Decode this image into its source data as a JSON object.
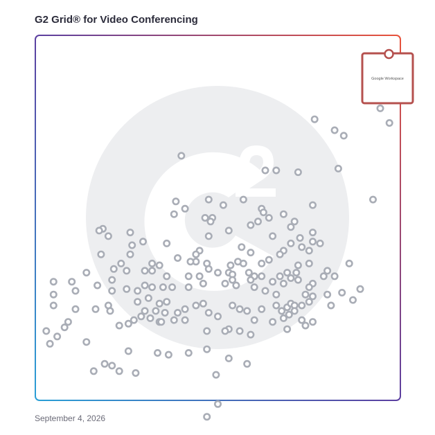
{
  "header": {
    "title": "G2 Grid® for Video Conferencing"
  },
  "footer": {
    "date": "September 4, 2026"
  },
  "colors": {
    "frame_top": "#e8523a",
    "frame_left": "#5b3fa0",
    "frame_bottom_left": "#2a9fd6",
    "frame_bottom_right": "#7a3fa0",
    "dot": "#a9adb6",
    "highlight": "#b5504e",
    "watermark": "#edeef0"
  },
  "chart_data": {
    "type": "scatter",
    "title": "G2 Grid® for Video Conferencing",
    "xlabel": "",
    "ylabel": "",
    "xlim": [
      0,
      100
    ],
    "ylim": [
      0,
      100
    ],
    "grid": "quadrants",
    "quadrant_split": [
      50,
      50
    ],
    "highlight": {
      "label": "Google Workspace",
      "x": 97,
      "y": 88,
      "icon": "google-workspace-logo"
    },
    "points": [
      [
        94.5,
        80
      ],
      [
        97,
        76
      ],
      [
        76.5,
        77
      ],
      [
        82,
        74
      ],
      [
        84.5,
        72.5
      ],
      [
        40,
        67
      ],
      [
        63,
        63
      ],
      [
        66,
        63
      ],
      [
        72,
        62.5
      ],
      [
        83,
        63.5
      ],
      [
        47.5,
        55
      ],
      [
        57,
        55
      ],
      [
        62,
        52.5
      ],
      [
        92.5,
        55
      ],
      [
        76,
        53.5
      ],
      [
        38.5,
        54.5
      ],
      [
        41,
        52.5
      ],
      [
        51.5,
        53.5
      ],
      [
        38,
        51
      ],
      [
        62.5,
        51.5
      ],
      [
        64,
        50
      ],
      [
        68,
        51
      ],
      [
        46.5,
        50
      ],
      [
        48.5,
        50
      ],
      [
        48,
        49
      ],
      [
        61,
        49
      ],
      [
        59,
        48
      ],
      [
        71,
        49
      ],
      [
        70,
        47.5
      ],
      [
        53,
        46.5
      ],
      [
        65,
        45
      ],
      [
        18.5,
        47
      ],
      [
        17.5,
        46.5
      ],
      [
        20,
        45
      ],
      [
        26,
        46
      ],
      [
        29.5,
        43.5
      ],
      [
        36,
        43
      ],
      [
        26.5,
        42.5
      ],
      [
        47.5,
        45
      ],
      [
        70,
        43
      ],
      [
        76,
        46
      ],
      [
        72.5,
        44.5
      ],
      [
        76,
        43.5
      ],
      [
        73,
        42
      ],
      [
        78,
        43
      ],
      [
        56.5,
        42
      ],
      [
        59,
        40.5
      ],
      [
        68,
        41
      ],
      [
        67,
        40
      ],
      [
        75,
        41
      ],
      [
        45,
        41
      ],
      [
        44,
        40
      ],
      [
        18,
        40
      ],
      [
        26,
        40
      ],
      [
        44,
        38
      ],
      [
        39,
        39
      ],
      [
        55.5,
        38
      ],
      [
        57,
        37.5
      ],
      [
        62,
        37.5
      ],
      [
        64,
        38.5
      ],
      [
        72,
        37
      ],
      [
        75,
        37.5
      ],
      [
        71.5,
        35
      ],
      [
        69,
        35
      ],
      [
        67,
        34
      ],
      [
        60,
        34
      ],
      [
        58.5,
        35
      ],
      [
        53.5,
        37
      ],
      [
        47,
        37.5
      ],
      [
        42.5,
        38
      ],
      [
        32,
        37.5
      ],
      [
        34,
        37
      ],
      [
        23.5,
        37.5
      ],
      [
        21.5,
        36
      ],
      [
        14,
        35
      ],
      [
        21,
        33
      ],
      [
        25,
        35.5
      ],
      [
        30,
        35.5
      ],
      [
        32,
        35.5
      ],
      [
        36,
        34
      ],
      [
        42,
        34
      ],
      [
        45,
        34
      ],
      [
        47.5,
        36
      ],
      [
        50,
        35
      ],
      [
        53,
        35
      ],
      [
        54,
        34.5
      ],
      [
        59,
        33
      ],
      [
        62,
        34
      ],
      [
        65,
        32.5
      ],
      [
        68,
        32
      ],
      [
        70,
        33.5
      ],
      [
        72,
        33
      ],
      [
        76,
        32
      ],
      [
        79,
        34
      ],
      [
        80,
        35.5
      ],
      [
        82,
        34
      ],
      [
        86,
        37.5
      ],
      [
        75,
        31
      ],
      [
        74,
        29
      ],
      [
        66,
        29
      ],
      [
        63,
        30
      ],
      [
        60,
        31
      ],
      [
        55,
        31.5
      ],
      [
        52,
        32
      ],
      [
        54,
        33
      ],
      [
        46,
        32
      ],
      [
        42,
        31
      ],
      [
        37.5,
        31
      ],
      [
        35,
        31
      ],
      [
        32,
        31
      ],
      [
        30,
        31.5
      ],
      [
        28,
        30
      ],
      [
        25,
        30.5
      ],
      [
        21,
        30
      ],
      [
        17,
        31.5
      ],
      [
        11,
        30
      ],
      [
        5,
        32.5
      ],
      [
        10,
        32.5
      ],
      [
        5,
        29
      ],
      [
        5,
        26
      ],
      [
        11,
        25
      ],
      [
        16.5,
        25
      ],
      [
        20.5,
        24.5
      ],
      [
        20,
        26
      ],
      [
        28,
        27
      ],
      [
        31,
        28
      ],
      [
        34,
        26.5
      ],
      [
        36,
        27
      ],
      [
        30,
        24.5
      ],
      [
        31.5,
        22.5
      ],
      [
        34,
        21.5
      ],
      [
        35.5,
        24
      ],
      [
        39,
        24
      ],
      [
        41,
        25
      ],
      [
        44,
        26
      ],
      [
        46,
        26.5
      ],
      [
        47.5,
        24
      ],
      [
        50,
        23
      ],
      [
        54,
        26
      ],
      [
        60,
        22
      ],
      [
        58,
        24.5
      ],
      [
        56,
        25
      ],
      [
        62,
        25
      ],
      [
        66,
        26
      ],
      [
        67.5,
        24.5
      ],
      [
        69,
        25.5
      ],
      [
        70,
        26.5
      ],
      [
        71,
        26
      ],
      [
        73,
        26
      ],
      [
        75,
        27
      ],
      [
        76,
        28.5
      ],
      [
        80,
        29
      ],
      [
        81,
        26
      ],
      [
        84,
        29.5
      ],
      [
        87,
        27.5
      ],
      [
        89,
        30.5
      ],
      [
        65,
        21.5
      ],
      [
        68,
        22.5
      ],
      [
        69.5,
        23.5
      ],
      [
        71,
        24.5
      ],
      [
        73,
        22
      ],
      [
        74,
        20.5
      ],
      [
        76,
        21.5
      ],
      [
        69,
        19.5
      ],
      [
        56,
        19
      ],
      [
        53,
        19.5
      ],
      [
        52,
        19
      ],
      [
        47,
        19
      ],
      [
        41,
        22
      ],
      [
        38,
        22
      ],
      [
        34.5,
        21.5
      ],
      [
        25.5,
        21
      ],
      [
        27,
        22
      ],
      [
        29,
        23
      ],
      [
        33,
        24.5
      ],
      [
        9,
        21.5
      ],
      [
        8,
        20
      ],
      [
        3,
        19
      ],
      [
        6,
        17.5
      ],
      [
        4,
        15.5
      ],
      [
        23,
        20.5
      ],
      [
        14,
        16
      ],
      [
        25.5,
        13.5
      ],
      [
        33.5,
        13
      ],
      [
        36.5,
        12.5
      ],
      [
        42,
        13
      ],
      [
        47,
        14
      ],
      [
        53,
        11.5
      ],
      [
        58,
        10
      ],
      [
        19,
        10
      ],
      [
        21,
        9.5
      ],
      [
        16,
        8
      ],
      [
        23,
        8
      ],
      [
        27.5,
        7.5
      ],
      [
        49.5,
        7
      ],
      [
        50,
        -1
      ],
      [
        47,
        -4.5
      ],
      [
        59,
        18
      ]
    ]
  }
}
